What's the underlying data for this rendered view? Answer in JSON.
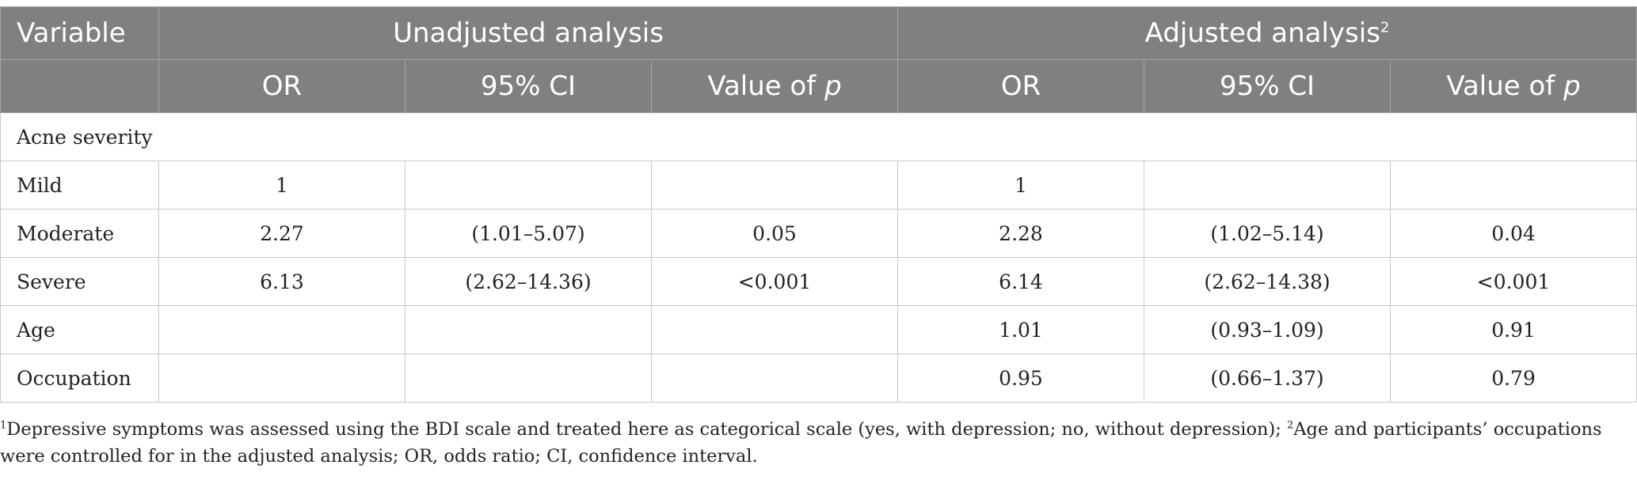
{
  "header": {
    "variable_label": "Variable",
    "group_unadjusted": "Unadjusted analysis",
    "group_adjusted": "Adjusted analysis",
    "group_adjusted_sup": "2",
    "sub_or": "OR",
    "sub_ci": "95% CI",
    "sub_p_prefix": "Value of ",
    "sub_p_italic": "p"
  },
  "section_label": "Acne severity",
  "rows": [
    {
      "variable": "Mild",
      "u_or": "1",
      "u_ci": "",
      "u_p": "",
      "a_or": "1",
      "a_ci": "",
      "a_p": ""
    },
    {
      "variable": "Moderate",
      "u_or": "2.27",
      "u_ci": "(1.01–5.07)",
      "u_p": "0.05",
      "a_or": "2.28",
      "a_ci": "(1.02–5.14)",
      "a_p": "0.04"
    },
    {
      "variable": "Severe",
      "u_or": "6.13",
      "u_ci": "(2.62–14.36)",
      "u_p": "<0.001",
      "a_or": "6.14",
      "a_ci": "(2.62–14.38)",
      "a_p": "<0.001"
    },
    {
      "variable": "Age",
      "u_or": "",
      "u_ci": "",
      "u_p": "",
      "a_or": "1.01",
      "a_ci": "(0.93–1.09)",
      "a_p": "0.91"
    },
    {
      "variable": "Occupation",
      "u_or": "",
      "u_ci": "",
      "u_p": "",
      "a_or": "0.95",
      "a_ci": "(0.66–1.37)",
      "a_p": "0.79"
    }
  ],
  "footnote": {
    "sup1": "1",
    "text1": "Depressive symptoms was assessed using the BDI scale and treated here as categorical scale (yes, with depression; no, without depression); ",
    "sup2": "2",
    "text2": "Age and participants’ occupations were controlled for in the adjusted analysis; OR, odds ratio; CI, confidence interval."
  }
}
